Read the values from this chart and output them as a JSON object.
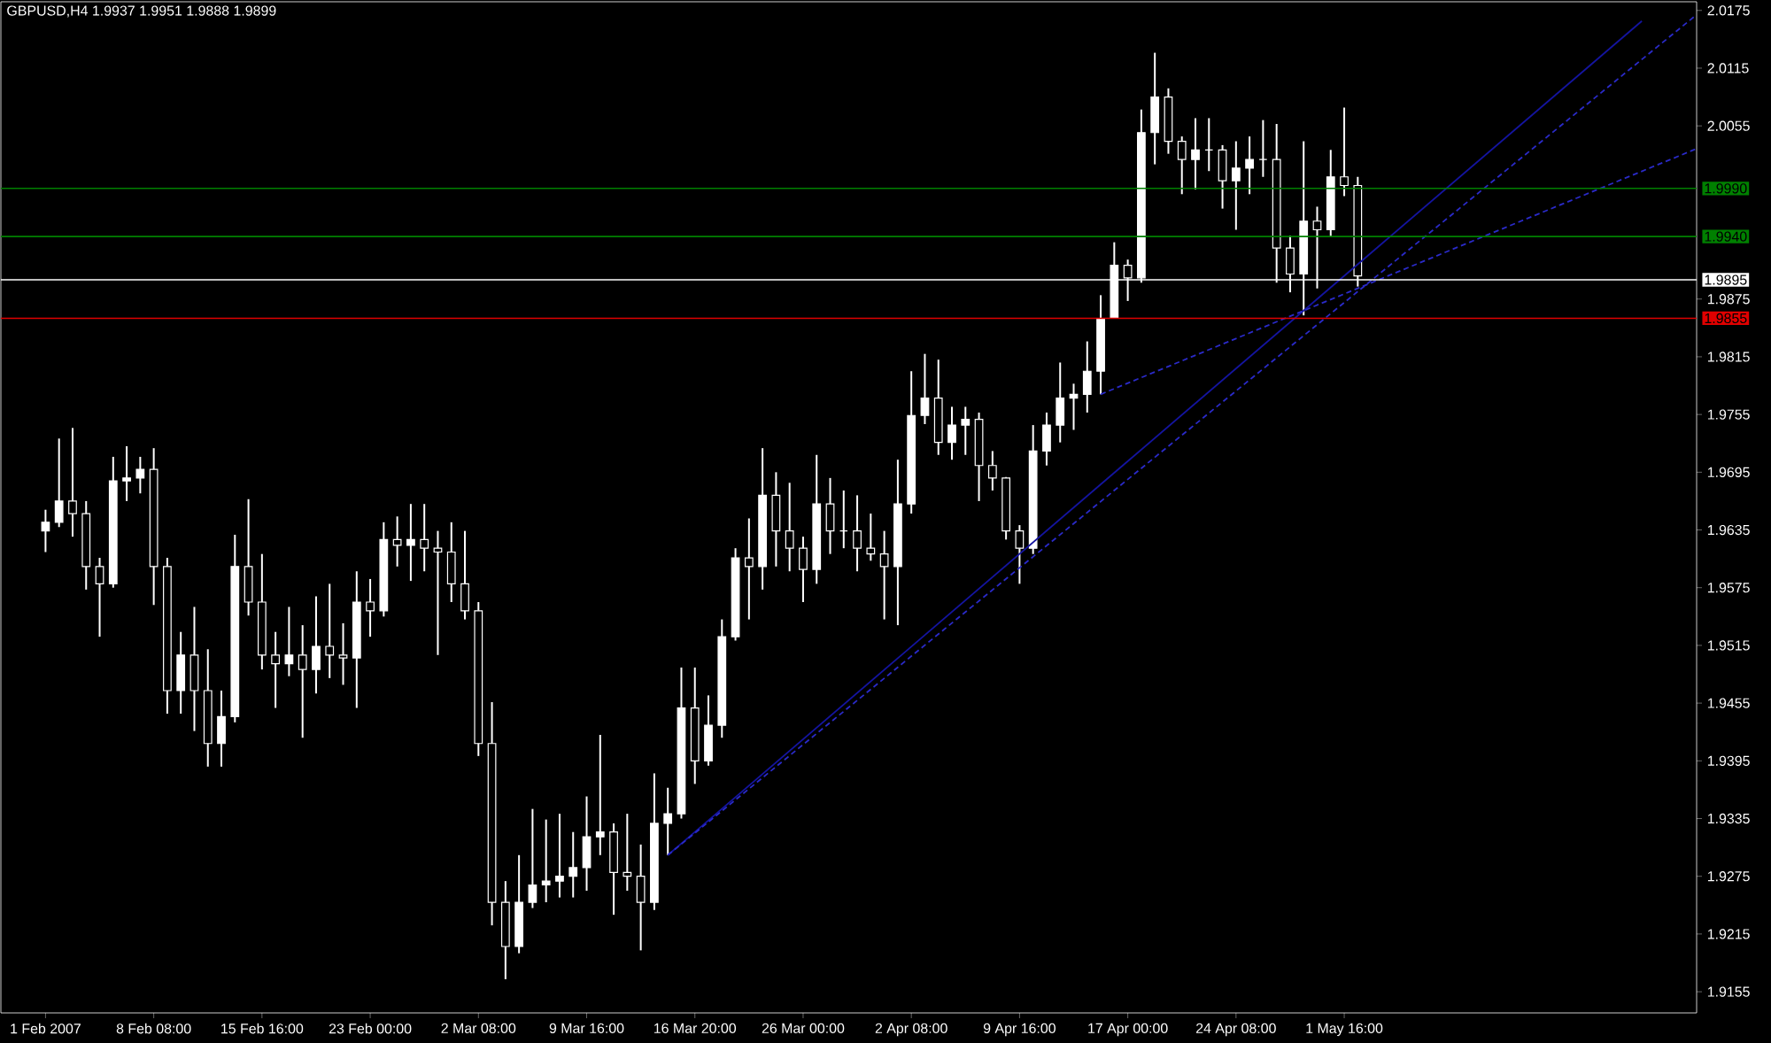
{
  "chart_data": {
    "type": "candlestick",
    "title": "GBPUSD,H4 1.9937 1.9951 1.9888 1.9899",
    "color": "#ffffff",
    "categories": [
      "1 Feb 2007",
      null,
      null,
      null,
      null,
      null,
      null,
      null,
      "8 Feb 08:00",
      null,
      null,
      null,
      null,
      null,
      null,
      null,
      "15 Feb 16:00",
      null,
      null,
      null,
      null,
      null,
      null,
      null,
      "23 Feb 00:00",
      null,
      null,
      null,
      null,
      null,
      null,
      null,
      "2 Mar 08:00",
      null,
      null,
      null,
      null,
      null,
      null,
      null,
      "9 Mar 16:00",
      null,
      null,
      null,
      null,
      null,
      null,
      null,
      "16 Mar 20:00",
      null,
      null,
      null,
      null,
      null,
      null,
      null,
      "26 Mar 00:00",
      null,
      null,
      null,
      null,
      null,
      null,
      null,
      "2 Apr 08:00",
      null,
      null,
      null,
      null,
      null,
      null,
      null,
      "9 Apr 16:00",
      null,
      null,
      null,
      null,
      null,
      null,
      null,
      "17 Apr 00:00",
      null,
      null,
      null,
      null,
      null,
      null,
      null,
      "24 Apr 08:00",
      null,
      null,
      null,
      null,
      null,
      null,
      null,
      "1 May 16:00",
      null,
      null,
      null,
      null,
      null,
      null,
      null,
      null,
      null,
      null,
      null,
      null,
      null,
      null,
      null,
      null,
      null,
      null,
      null,
      null,
      null,
      null,
      null,
      null,
      null,
      null
    ],
    "ohlc": [
      [
        1.9634,
        1.9656,
        1.9612,
        1.9643
      ],
      [
        1.9643,
        1.973,
        1.9638,
        1.9665
      ],
      [
        1.9665,
        1.9741,
        1.9628,
        1.9652
      ],
      [
        1.9652,
        1.9665,
        1.9573,
        1.9597
      ],
      [
        1.9597,
        1.9606,
        1.9524,
        1.9579
      ],
      [
        1.9579,
        1.9711,
        1.9575,
        1.9686
      ],
      [
        1.9686,
        1.9722,
        1.9665,
        1.9689
      ],
      [
        1.9689,
        1.9711,
        1.9673,
        1.9698
      ],
      [
        1.9698,
        1.972,
        1.9557,
        1.9597
      ],
      [
        1.9597,
        1.9606,
        1.9444,
        1.9468
      ],
      [
        1.9468,
        1.9529,
        1.9444,
        1.9505
      ],
      [
        1.9505,
        1.9555,
        1.9426,
        1.9468
      ],
      [
        1.9468,
        1.9511,
        1.9389,
        1.9413
      ],
      [
        1.9413,
        1.9468,
        1.9389,
        1.9441
      ],
      [
        1.9441,
        1.963,
        1.9435,
        1.9597
      ],
      [
        1.9597,
        1.9667,
        1.9546,
        1.956
      ],
      [
        1.956,
        1.961,
        1.949,
        1.9505
      ],
      [
        1.9505,
        1.9529,
        1.945,
        1.9496
      ],
      [
        1.9496,
        1.9555,
        1.9483,
        1.9505
      ],
      [
        1.9505,
        1.9536,
        1.9419,
        1.949
      ],
      [
        1.949,
        1.9566,
        1.9465,
        1.9514
      ],
      [
        1.9514,
        1.9579,
        1.9481,
        1.9505
      ],
      [
        1.9505,
        1.9538,
        1.9474,
        1.9502
      ],
      [
        1.9502,
        1.9592,
        1.945,
        1.956
      ],
      [
        1.956,
        1.9584,
        1.9524,
        1.9551
      ],
      [
        1.9551,
        1.9643,
        1.9545,
        1.9625
      ],
      [
        1.9625,
        1.9649,
        1.9597,
        1.9619
      ],
      [
        1.9619,
        1.9662,
        1.9582,
        1.9625
      ],
      [
        1.9625,
        1.9662,
        1.9592,
        1.9616
      ],
      [
        1.9616,
        1.9634,
        1.9505,
        1.9612
      ],
      [
        1.9612,
        1.9643,
        1.956,
        1.9579
      ],
      [
        1.9579,
        1.9634,
        1.9542,
        1.9551
      ],
      [
        1.9551,
        1.956,
        1.94,
        1.9413
      ],
      [
        1.9413,
        1.9456,
        1.9224,
        1.9248
      ],
      [
        1.9248,
        1.927,
        1.9168,
        1.9202
      ],
      [
        1.9202,
        1.9297,
        1.9195,
        1.9248
      ],
      [
        1.9248,
        1.9345,
        1.9242,
        1.9266
      ],
      [
        1.9266,
        1.9334,
        1.9248,
        1.927
      ],
      [
        1.927,
        1.934,
        1.9253,
        1.9275
      ],
      [
        1.9275,
        1.9321,
        1.9253,
        1.9284
      ],
      [
        1.9284,
        1.9358,
        1.926,
        1.9316
      ],
      [
        1.9316,
        1.9422,
        1.9297,
        1.9321
      ],
      [
        1.9321,
        1.933,
        1.9235,
        1.9279
      ],
      [
        1.9279,
        1.934,
        1.926,
        1.9275
      ],
      [
        1.9275,
        1.9308,
        1.9198,
        1.9248
      ],
      [
        1.9248,
        1.9382,
        1.924,
        1.933
      ],
      [
        1.933,
        1.9367,
        1.9297,
        1.934
      ],
      [
        1.934,
        1.9492,
        1.9335,
        1.945
      ],
      [
        1.945,
        1.9492,
        1.9371,
        1.9395
      ],
      [
        1.9395,
        1.9463,
        1.939,
        1.9432
      ],
      [
        1.9432,
        1.9542,
        1.9419,
        1.9524
      ],
      [
        1.9524,
        1.9616,
        1.952,
        1.9606
      ],
      [
        1.9606,
        1.9647,
        1.9542,
        1.9597
      ],
      [
        1.9597,
        1.972,
        1.9573,
        1.9671
      ],
      [
        1.9671,
        1.9695,
        1.9597,
        1.9634
      ],
      [
        1.9634,
        1.9684,
        1.9592,
        1.9616
      ],
      [
        1.9616,
        1.9628,
        1.956,
        1.9594
      ],
      [
        1.9594,
        1.9713,
        1.9579,
        1.9662
      ],
      [
        1.9662,
        1.9689,
        1.961,
        1.9634
      ],
      [
        1.9634,
        1.9676,
        1.9616,
        1.9634
      ],
      [
        1.9634,
        1.9671,
        1.9592,
        1.9616
      ],
      [
        1.9616,
        1.9652,
        1.9603,
        1.961
      ],
      [
        1.961,
        1.9634,
        1.9542,
        1.9597
      ],
      [
        1.9597,
        1.9708,
        1.9536,
        1.9662
      ],
      [
        1.9662,
        1.98,
        1.9652,
        1.9754
      ],
      [
        1.9754,
        1.9818,
        1.9745,
        1.9772
      ],
      [
        1.9772,
        1.9812,
        1.9713,
        1.9726
      ],
      [
        1.9726,
        1.9763,
        1.9708,
        1.9744
      ],
      [
        1.9744,
        1.9763,
        1.9713,
        1.975
      ],
      [
        1.975,
        1.9757,
        1.9665,
        1.9702
      ],
      [
        1.9702,
        1.9717,
        1.9676,
        1.9689
      ],
      [
        1.9689,
        1.969,
        1.9625,
        1.9634
      ],
      [
        1.9634,
        1.964,
        1.9579,
        1.9616
      ],
      [
        1.9616,
        1.9744,
        1.961,
        1.9717
      ],
      [
        1.9717,
        1.9757,
        1.9702,
        1.9744
      ],
      [
        1.9744,
        1.9809,
        1.9726,
        1.9772
      ],
      [
        1.9772,
        1.9787,
        1.9739,
        1.9776
      ],
      [
        1.9776,
        1.9831,
        1.9757,
        1.98
      ],
      [
        1.98,
        1.9879,
        1.9776,
        1.9855
      ],
      [
        1.9855,
        1.9934,
        1.9855,
        1.991
      ],
      [
        1.991,
        1.9916,
        1.9873,
        1.9897
      ],
      [
        1.9897,
        2.0072,
        1.9892,
        2.0048
      ],
      [
        2.0048,
        2.0131,
        2.0015,
        2.0085
      ],
      [
        2.0085,
        2.0094,
        2.0026,
        2.0039
      ],
      [
        2.0039,
        2.0044,
        1.9984,
        2.002
      ],
      [
        2.002,
        2.0063,
        1.9989,
        2.003
      ],
      [
        2.003,
        2.0063,
        2.0008,
        2.003
      ],
      [
        2.003,
        2.0035,
        1.9969,
        1.9998
      ],
      [
        1.9998,
        2.0039,
        1.9947,
        2.0011
      ],
      [
        2.0011,
        2.0044,
        1.9984,
        2.002
      ],
      [
        2.002,
        2.0061,
        2.0002,
        2.002
      ],
      [
        2.002,
        2.0057,
        1.9892,
        1.9928
      ],
      [
        1.9928,
        1.9941,
        1.9882,
        1.9901
      ],
      [
        1.9901,
        2.0039,
        1.9858,
        1.9956
      ],
      [
        1.9956,
        1.9971,
        1.9886,
        1.9947
      ],
      [
        1.9947,
        2.003,
        1.994,
        2.0002
      ],
      [
        2.0002,
        2.0074,
        1.9982,
        1.9993
      ],
      [
        1.9993,
        2.0002,
        1.9888,
        1.9899
      ],
      null,
      null,
      null,
      null,
      null,
      null,
      null,
      null,
      null,
      null,
      null,
      null,
      null,
      null,
      null,
      null,
      null,
      null,
      null,
      null,
      null,
      null,
      null,
      null,
      null
    ],
    "series": [
      {
        "type": "line",
        "color": "#1414a0",
        "line_style": "solid",
        "values": [
          null,
          null,
          null,
          null,
          null,
          null,
          null,
          null,
          null,
          null,
          null,
          null,
          null,
          null,
          null,
          null,
          null,
          null,
          null,
          null,
          null,
          null,
          null,
          null,
          null,
          null,
          null,
          null,
          null,
          null,
          null,
          null,
          null,
          null,
          null,
          null,
          null,
          null,
          null,
          null,
          null,
          null,
          null,
          null,
          null,
          null,
          1.9297,
          null,
          null,
          null,
          null,
          null,
          null,
          null,
          null,
          null,
          null,
          null,
          null,
          null,
          null,
          null,
          null,
          null,
          null,
          null,
          null,
          null,
          null,
          null,
          null,
          null,
          null,
          null,
          null,
          null,
          null,
          null,
          null,
          null,
          null,
          null,
          null,
          null,
          null,
          null,
          null,
          null,
          null,
          null,
          null,
          null,
          null,
          null,
          null,
          null,
          null,
          null,
          null,
          null,
          null,
          null,
          null,
          null,
          null,
          null,
          null,
          null,
          null,
          null,
          null,
          null,
          null,
          null,
          null,
          null,
          null,
          null,
          2.0164,
          null,
          null,
          null,
          null
        ]
      },
      {
        "type": "line",
        "color": "#2a2ac8",
        "line_style": "dashed",
        "values": [
          null,
          null,
          null,
          null,
          null,
          null,
          null,
          null,
          null,
          null,
          null,
          null,
          null,
          null,
          null,
          null,
          null,
          null,
          null,
          null,
          null,
          null,
          null,
          null,
          null,
          null,
          null,
          null,
          null,
          null,
          null,
          null,
          null,
          null,
          null,
          null,
          null,
          null,
          null,
          null,
          null,
          null,
          null,
          null,
          null,
          null,
          1.9297,
          null,
          null,
          null,
          null,
          null,
          null,
          null,
          null,
          null,
          null,
          null,
          null,
          null,
          null,
          null,
          null,
          null,
          null,
          null,
          null,
          null,
          null,
          null,
          null,
          null,
          null,
          null,
          null,
          null,
          null,
          null,
          null,
          null,
          null,
          null,
          null,
          null,
          null,
          null,
          null,
          null,
          null,
          null,
          null,
          null,
          null,
          null,
          null,
          null,
          null,
          null,
          null,
          null,
          null,
          null,
          null,
          null,
          null,
          null,
          null,
          null,
          null,
          null,
          null,
          null,
          null,
          null,
          null,
          null,
          null,
          null,
          null,
          null,
          null,
          null,
          2.017
        ]
      },
      {
        "type": "line",
        "color": "#2a2ac8",
        "line_style": "dashed",
        "values": [
          null,
          null,
          null,
          null,
          null,
          null,
          null,
          null,
          null,
          null,
          null,
          null,
          null,
          null,
          null,
          null,
          null,
          null,
          null,
          null,
          null,
          null,
          null,
          null,
          null,
          null,
          null,
          null,
          null,
          null,
          null,
          null,
          null,
          null,
          null,
          null,
          null,
          null,
          null,
          null,
          null,
          null,
          null,
          null,
          null,
          null,
          null,
          null,
          null,
          null,
          null,
          null,
          null,
          null,
          null,
          null,
          null,
          null,
          null,
          null,
          null,
          null,
          null,
          null,
          null,
          null,
          null,
          null,
          null,
          null,
          null,
          null,
          null,
          null,
          null,
          null,
          null,
          null,
          1.9776,
          null,
          null,
          null,
          null,
          null,
          null,
          null,
          null,
          null,
          null,
          null,
          null,
          null,
          null,
          null,
          null,
          null,
          null,
          null,
          null,
          null,
          null,
          null,
          null,
          null,
          null,
          null,
          null,
          null,
          null,
          null,
          null,
          null,
          null,
          null,
          null,
          null,
          null,
          null,
          null,
          null,
          null,
          null,
          2.0031
        ]
      }
    ],
    "ylim": [
      1.9133,
      2.0184
    ],
    "yticks": [
      2.0175,
      2.0115,
      2.0055,
      1.9875,
      1.9815,
      1.9755,
      1.9695,
      1.9635,
      1.9575,
      1.9515,
      1.9455,
      1.9395,
      1.9335,
      1.9275,
      1.9215,
      1.9155
    ],
    "ref_lines": [
      {
        "axis": "y",
        "value": 1.999,
        "label": "1.9990",
        "color": "#008000"
      },
      {
        "axis": "y",
        "value": 1.994,
        "label": "1.9940",
        "color": "#008000"
      },
      {
        "axis": "y",
        "value": 1.9895,
        "label": "1.9895",
        "color": "#ffffff"
      },
      {
        "axis": "y",
        "value": 1.9855,
        "label": "1.9855",
        "color": "#e00000"
      }
    ]
  }
}
